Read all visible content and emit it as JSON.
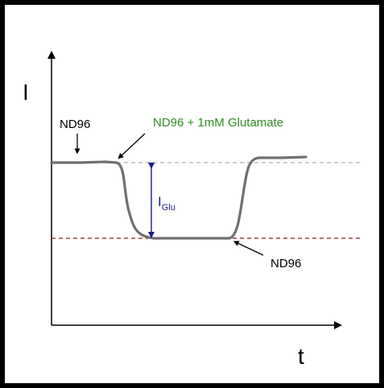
{
  "chart_data": {
    "type": "line",
    "ylabel": "I",
    "xlabel": "t",
    "annotations": {
      "baseline_solution": "ND96",
      "applied_solution": "ND96 + 1mM Glutamate",
      "return_solution": "ND96",
      "current_label_main": "I",
      "current_label_sub": "Glu"
    },
    "colors": {
      "trace": "#707070",
      "baseline_dashed": "#b0b0b0",
      "response_dashed": "#8b1a1a",
      "applied_label": "#2e8b20",
      "current_arrow": "#1a1a8c"
    }
  }
}
